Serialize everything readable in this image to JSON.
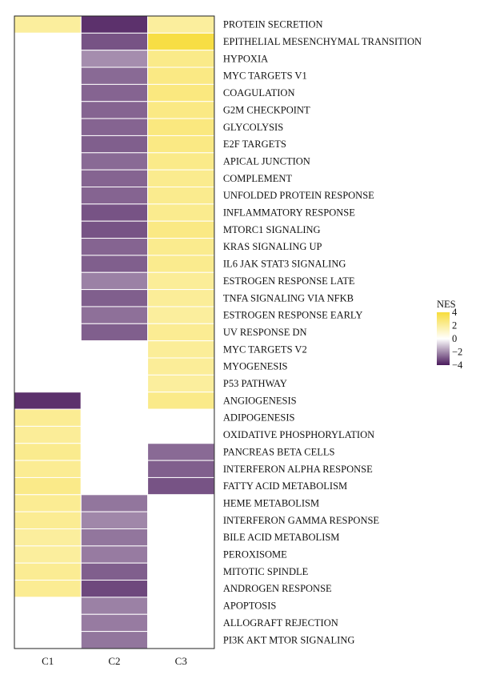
{
  "chart_data": {
    "type": "heatmap",
    "columns": [
      "C1",
      "C2",
      "C3"
    ],
    "rows": [
      "PROTEIN SECRETION",
      "EPITHELIAL MESENCHYMAL TRANSITION",
      "HYPOXIA",
      "MYC TARGETS V1",
      "COAGULATION",
      "G2M CHECKPOINT",
      "GLYCOLYSIS",
      "E2F TARGETS",
      "APICAL JUNCTION",
      "COMPLEMENT",
      "UNFOLDED PROTEIN RESPONSE",
      "INFLAMMATORY RESPONSE",
      "MTORC1 SIGNALING",
      "KRAS SIGNALING UP",
      "IL6 JAK STAT3 SIGNALING",
      "ESTROGEN RESPONSE LATE",
      "TNFA SIGNALING VIA NFKB",
      "ESTROGEN RESPONSE EARLY",
      "UV RESPONSE DN",
      "MYC TARGETS V2",
      "MYOGENESIS",
      "P53 PATHWAY",
      "ANGIOGENESIS",
      "ADIPOGENESIS",
      "OXIDATIVE PHOSPHORYLATION",
      "PANCREAS BETA CELLS",
      "INTERFERON ALPHA RESPONSE",
      "FATTY ACID METABOLISM",
      "HEME METABOLISM",
      "INTERFERON GAMMA RESPONSE",
      "BILE ACID METABOLISM",
      "PEROXISOME",
      "MITOTIC SPINDLE",
      "ANDROGEN RESPONSE",
      "APOPTOSIS",
      "ALLOGRAFT REJECTION",
      "PI3K AKT MTOR SIGNALING"
    ],
    "values": [
      [
        2.0,
        -3.6,
        2.0
      ],
      [
        null,
        -3.0,
        3.8
      ],
      [
        null,
        -2.0,
        2.4
      ],
      [
        null,
        -2.6,
        2.5
      ],
      [
        null,
        -2.7,
        2.6
      ],
      [
        null,
        -2.7,
        2.5
      ],
      [
        null,
        -2.7,
        2.6
      ],
      [
        null,
        -2.8,
        2.5
      ],
      [
        null,
        -2.6,
        2.4
      ],
      [
        null,
        -2.7,
        2.3
      ],
      [
        null,
        -2.7,
        2.3
      ],
      [
        null,
        -3.0,
        2.3
      ],
      [
        null,
        -3.0,
        2.5
      ],
      [
        null,
        -2.7,
        2.3
      ],
      [
        null,
        -2.8,
        2.3
      ],
      [
        null,
        -2.2,
        2.1
      ],
      [
        null,
        -2.8,
        2.1
      ],
      [
        null,
        -2.5,
        2.0
      ],
      [
        null,
        -2.8,
        2.2
      ],
      [
        null,
        null,
        2.1
      ],
      [
        null,
        null,
        2.1
      ],
      [
        null,
        null,
        2.0
      ],
      [
        -3.6,
        null,
        2.4
      ],
      [
        2.2,
        null,
        null
      ],
      [
        2.1,
        null,
        null
      ],
      [
        2.3,
        null,
        -2.6
      ],
      [
        2.2,
        null,
        -2.8
      ],
      [
        2.4,
        null,
        -3.0
      ],
      [
        2.2,
        -2.4,
        null
      ],
      [
        2.2,
        -2.1,
        null
      ],
      [
        2.0,
        -2.4,
        null
      ],
      [
        2.0,
        -2.3,
        null
      ],
      [
        2.2,
        -2.8,
        null
      ],
      [
        2.2,
        -3.2,
        null
      ],
      [
        null,
        -2.2,
        null
      ],
      [
        null,
        -2.3,
        null
      ],
      [
        null,
        -2.4,
        null
      ]
    ],
    "legend": {
      "title": "NES",
      "ticks": [
        4,
        2,
        0,
        -2,
        -4
      ],
      "tick_labels": [
        "4",
        "2",
        "0",
        "−2",
        "−4"
      ],
      "range": [
        -4,
        4
      ],
      "placement": "right"
    },
    "colors": {
      "high": "#F7DC3A",
      "mid": "#FFFFFF",
      "low": "#4A1A5C",
      "missing": "#FFFFFF",
      "cell_border": "#FFFFFF",
      "frame": "#222222"
    }
  }
}
